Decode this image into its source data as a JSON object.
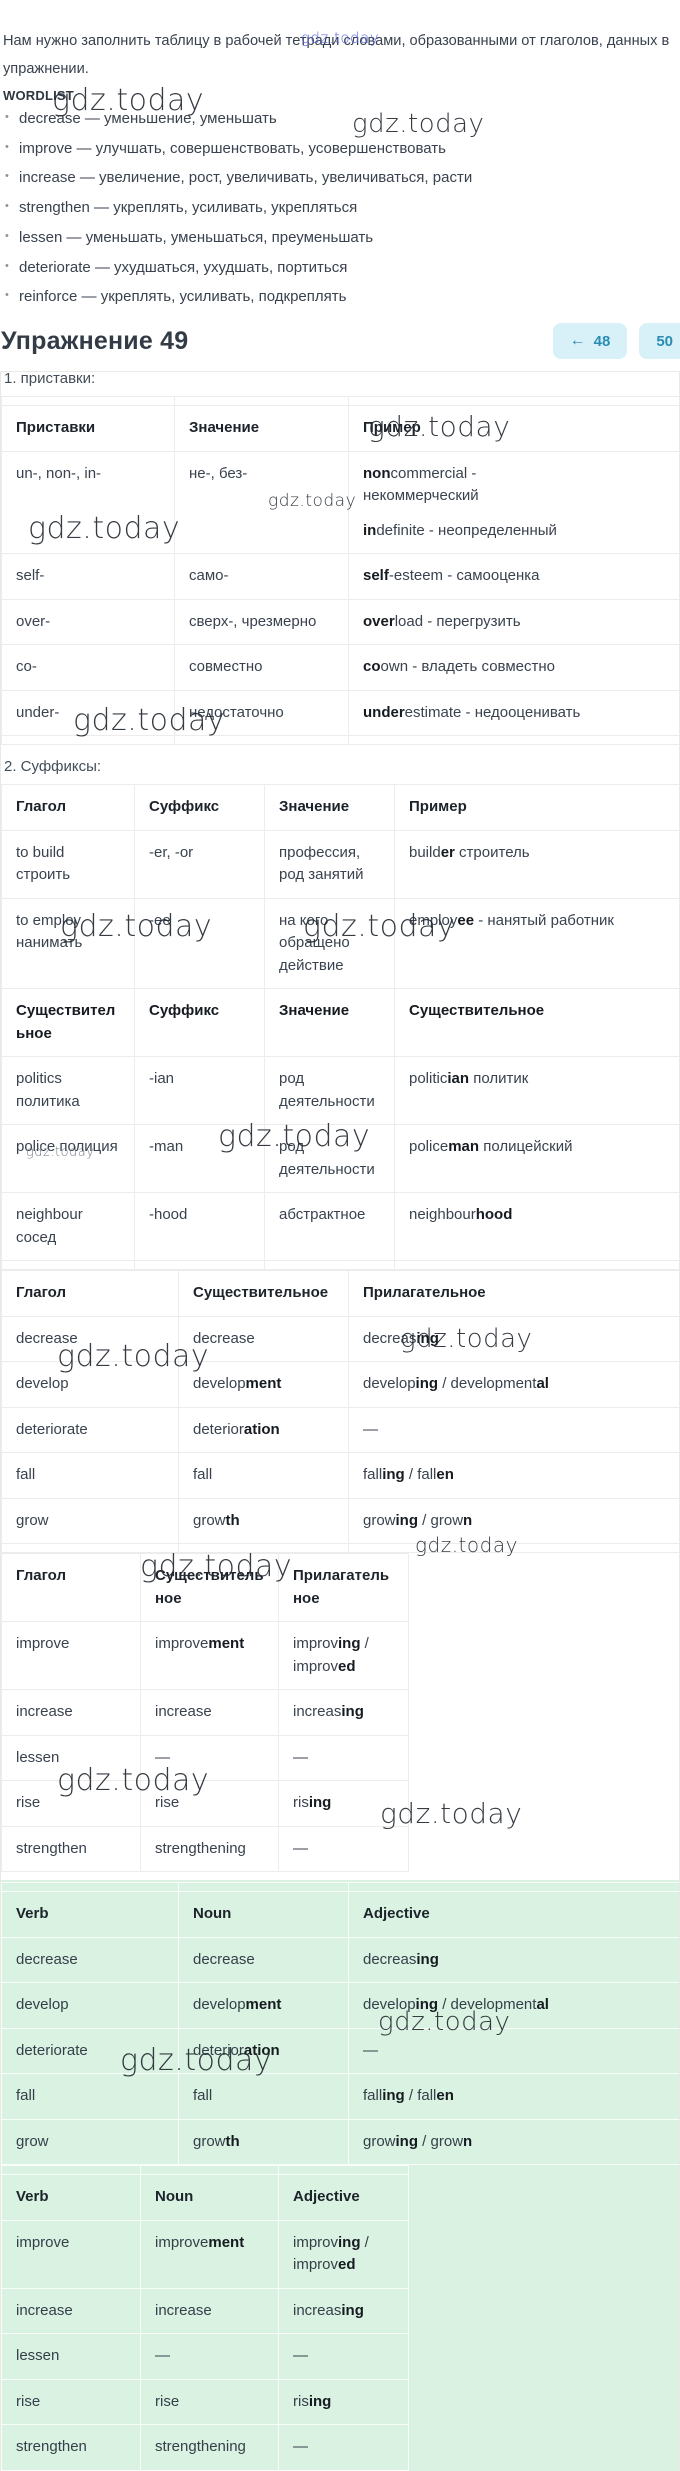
{
  "site": {
    "watermark_text": "gdz.today"
  },
  "intro": "Нам нужно заполнить таблицу в рабочей тетради словами, образованными от глаголов, данных в упражнении.",
  "wordlist": {
    "title": "WORDLIST",
    "items": [
      "decrease — уменьшение, уменьшать",
      "improve — улучшать, совершенствовать, усовершенствовать",
      "increase — увеличение, рост, увеличивать, увеличиваться, расти",
      "strengthen — укреплять, усиливать, укрепляться",
      "lessen — уменьшать, уменьшаться, преуменьшать",
      "deteriorate — ухудшаться, ухудшать, портиться",
      "reinforce — укреплять, усиливать, подкреплять"
    ]
  },
  "exercise": {
    "title": "Упражнение 49",
    "prev": {
      "arrow": "←",
      "num": "48"
    },
    "next": {
      "num": "50",
      "arrow": "→"
    }
  },
  "sections": {
    "prefixes_label": "1. приставки:",
    "suffixes_label": "2. Суффиксы:"
  },
  "colors": {
    "accent_blue": "#4f5fe0",
    "nav_text": "#2a8cb4",
    "nav_bg": "#d8f1f8",
    "green_bg": "#d9f2e1"
  },
  "tables": [
    {
      "name": "prefixes",
      "header": [
        "Приставки",
        "Значение",
        "Пример"
      ],
      "rows": [
        [
          [
            "un-, non-, in-"
          ],
          [
            "не-, без-"
          ],
          [
            "**non**commercial - некоммерческий",
            "**in**definite - неопределенный"
          ]
        ],
        [
          [
            "self-"
          ],
          [
            "само-"
          ],
          [
            "**self**-esteem - самооценка"
          ]
        ],
        [
          [
            "over-"
          ],
          [
            "сверх-, чрезмерно"
          ],
          [
            "**over**load - перегрузить"
          ]
        ],
        [
          [
            "co-"
          ],
          [
            "совместно"
          ],
          [
            "**co**own - владеть совместно"
          ]
        ],
        [
          [
            "under-"
          ],
          [
            "недостаточно"
          ],
          [
            "**under**estimate - недооценивать"
          ]
        ]
      ]
    },
    {
      "name": "suffixes",
      "header": [
        "Глагол",
        "Суффикс",
        "Значение",
        "Пример"
      ],
      "rows": [
        [
          [
            "to build строить"
          ],
          [
            "-er, -or"
          ],
          [
            "профессия, род занятий"
          ],
          [
            "build**er** строитель"
          ]
        ],
        [
          [
            "to employ нанимать"
          ],
          [
            "-ee"
          ],
          [
            "на кого обращено действие"
          ],
          [
            "employ**ee** - нанятый работник"
          ]
        ],
        [
          [
            "**Существительное**"
          ],
          [
            "**Суффикс**"
          ],
          [
            "**Значение**"
          ],
          [
            "**Существительное**"
          ]
        ],
        [
          [
            "politics политика"
          ],
          [
            "-ian"
          ],
          [
            "род деятельности"
          ],
          [
            "politic**ian** политик"
          ]
        ],
        [
          [
            "police полиция"
          ],
          [
            "-man"
          ],
          [
            "род деятельности"
          ],
          [
            "police**man** полицейский"
          ]
        ],
        [
          [
            "neighbour сосед"
          ],
          [
            "-hood"
          ],
          [
            "абстрактное"
          ],
          [
            "neighbour**hood**"
          ]
        ]
      ]
    },
    {
      "name": "verb-noun-adjective-ru-1",
      "header": [
        "Глагол",
        "Существительное",
        "Прилагательное"
      ],
      "rows": [
        [
          [
            "decrease"
          ],
          [
            "decrease"
          ],
          [
            "decreas**ing**"
          ]
        ],
        [
          [
            "develop"
          ],
          [
            "develop**ment**"
          ],
          [
            "develop**ing** / development**al**"
          ]
        ],
        [
          [
            "deteriorate"
          ],
          [
            "deterior**ation**"
          ],
          [
            "—"
          ]
        ],
        [
          [
            "fall"
          ],
          [
            "fall"
          ],
          [
            "fall**ing** / fall**en**"
          ]
        ],
        [
          [
            "grow"
          ],
          [
            "grow**th**"
          ],
          [
            "grow**ing** / grow**n**"
          ]
        ]
      ]
    },
    {
      "name": "verb-noun-adjective-ru-2",
      "header": [
        "Глагол",
        "Существительное",
        "Прилагательное"
      ],
      "rows": [
        [
          [
            "improve"
          ],
          [
            "improve**ment**"
          ],
          [
            "improv**ing** / improv**ed**"
          ]
        ],
        [
          [
            "increase"
          ],
          [
            "increase"
          ],
          [
            "increas**ing**"
          ]
        ],
        [
          [
            "lessen"
          ],
          [
            "—"
          ],
          [
            "—"
          ]
        ],
        [
          [
            "rise"
          ],
          [
            "rise"
          ],
          [
            "ris**ing**"
          ]
        ],
        [
          [
            "strengthen"
          ],
          [
            "strengthening"
          ],
          [
            "—"
          ]
        ]
      ]
    },
    {
      "name": "verb-noun-adjective-en-1",
      "header": [
        "Verb",
        "Noun",
        "Adjective"
      ],
      "rows": [
        [
          [
            "decrease"
          ],
          [
            "decrease"
          ],
          [
            "decreas**ing**"
          ]
        ],
        [
          [
            "develop"
          ],
          [
            "develop**ment**"
          ],
          [
            "develop**ing** / development**al**"
          ]
        ],
        [
          [
            "deteriorate"
          ],
          [
            "deterior**ation**"
          ],
          [
            "—"
          ]
        ],
        [
          [
            "fall"
          ],
          [
            "fall"
          ],
          [
            "fall**ing** / fall**en**"
          ]
        ],
        [
          [
            "grow"
          ],
          [
            "grow**th**"
          ],
          [
            "grow**ing** / grow**n**"
          ]
        ]
      ]
    },
    {
      "name": "verb-noun-adjective-en-2",
      "header": [
        "Verb",
        "Noun",
        "Adjective"
      ],
      "rows": [
        [
          [
            "improve"
          ],
          [
            "improve**ment**"
          ],
          [
            "improv**ing** / improv**ed**"
          ]
        ],
        [
          [
            "increase"
          ],
          [
            "increase"
          ],
          [
            "increas**ing**"
          ]
        ],
        [
          [
            "lessen"
          ],
          [
            "—"
          ],
          [
            "—"
          ]
        ],
        [
          [
            "rise"
          ],
          [
            "rise"
          ],
          [
            "ris**ing**"
          ]
        ],
        [
          [
            "strengthen"
          ],
          [
            "strengthening"
          ],
          [
            "—"
          ]
        ]
      ]
    }
  ]
}
